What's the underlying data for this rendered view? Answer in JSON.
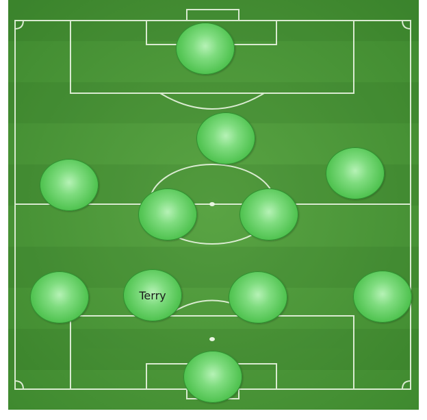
{
  "formation": {
    "players": [
      {
        "id": "p1",
        "label": ""
      },
      {
        "id": "p2",
        "label": ""
      },
      {
        "id": "p3",
        "label": ""
      },
      {
        "id": "p4",
        "label": ""
      },
      {
        "id": "p5",
        "label": ""
      },
      {
        "id": "p6",
        "label": ""
      },
      {
        "id": "p7",
        "label": ""
      },
      {
        "id": "p8",
        "label": "Terry"
      },
      {
        "id": "p9",
        "label": ""
      },
      {
        "id": "p10",
        "label": ""
      },
      {
        "id": "p11",
        "label": ""
      }
    ]
  },
  "colors": {
    "grass": "#4f9a3a",
    "lines": "#e8f4e0",
    "player_fill": "#54c554"
  }
}
